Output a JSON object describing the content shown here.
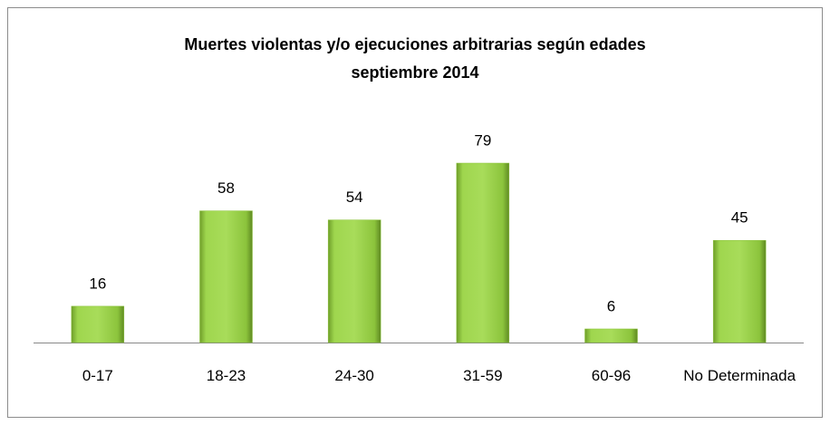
{
  "chart_data": {
    "type": "bar",
    "title": "Muertes violentas y/o ejecuciones arbitrarias según edades",
    "subtitle": "septiembre 2014",
    "categories": [
      "0-17",
      "18-23",
      "24-30",
      "31-59",
      "60-96",
      "No Determinada"
    ],
    "values": [
      16,
      58,
      54,
      79,
      6,
      45
    ],
    "color": "#8cc43c"
  }
}
